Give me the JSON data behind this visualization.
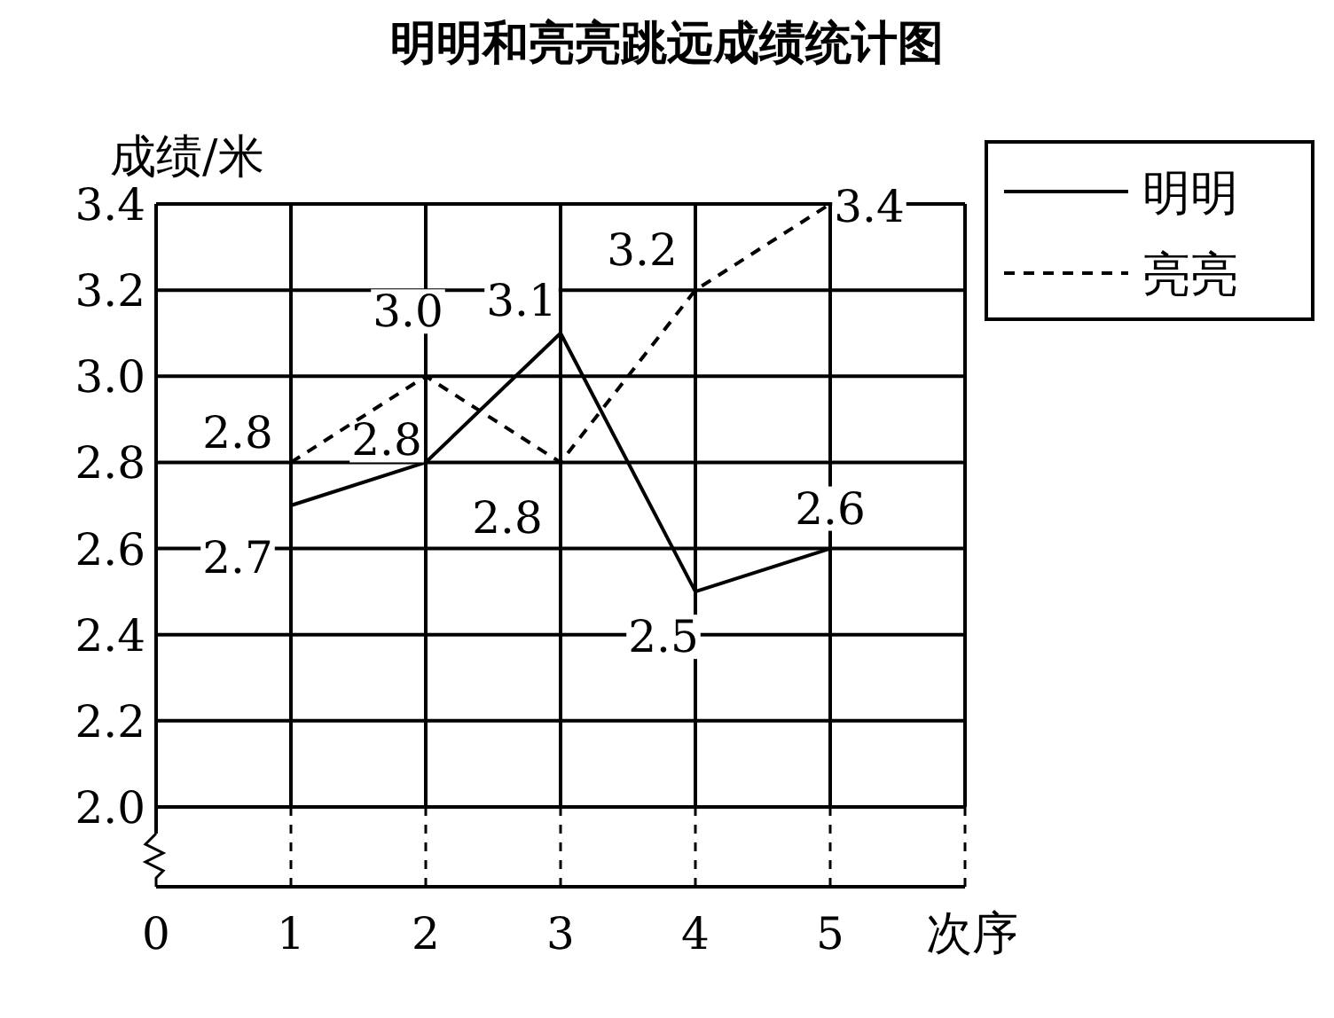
{
  "chart_data": {
    "type": "line",
    "title": "明明和亮亮跳远成绩统计图",
    "xlabel": "次序",
    "ylabel": "成绩/米",
    "x": [
      1,
      2,
      3,
      4,
      5
    ],
    "xlim": [
      0,
      6
    ],
    "xticks": [
      0,
      1,
      2,
      3,
      4,
      5
    ],
    "ylim": [
      2.0,
      3.4
    ],
    "yticks": [
      {
        "value": 2.0,
        "label": "2.0"
      },
      {
        "value": 2.2,
        "label": "2.2"
      },
      {
        "value": 2.4,
        "label": "2.4"
      },
      {
        "value": 2.6,
        "label": "2.6"
      },
      {
        "value": 2.8,
        "label": "2.8"
      },
      {
        "value": 3.0,
        "label": "3.0"
      },
      {
        "value": 3.2,
        "label": "3.2"
      },
      {
        "value": 3.4,
        "label": "3.4"
      }
    ],
    "grid": true,
    "legend": "top right",
    "marker": "none",
    "series": [
      {
        "name": "明明",
        "color": "#000000",
        "line_style": "solid",
        "values": [
          2.7,
          2.8,
          3.1,
          2.5,
          2.6
        ],
        "value_labels": [
          "2.7",
          "2.8",
          "3.1",
          "2.5",
          "2.6"
        ]
      },
      {
        "name": "亮亮",
        "color": "#000000",
        "line_style": "dashed",
        "values": [
          2.8,
          3.0,
          2.8,
          3.2,
          3.4
        ],
        "value_labels": [
          "2.8",
          "3.0",
          "2.8",
          "3.2",
          "3.4"
        ]
      }
    ]
  }
}
